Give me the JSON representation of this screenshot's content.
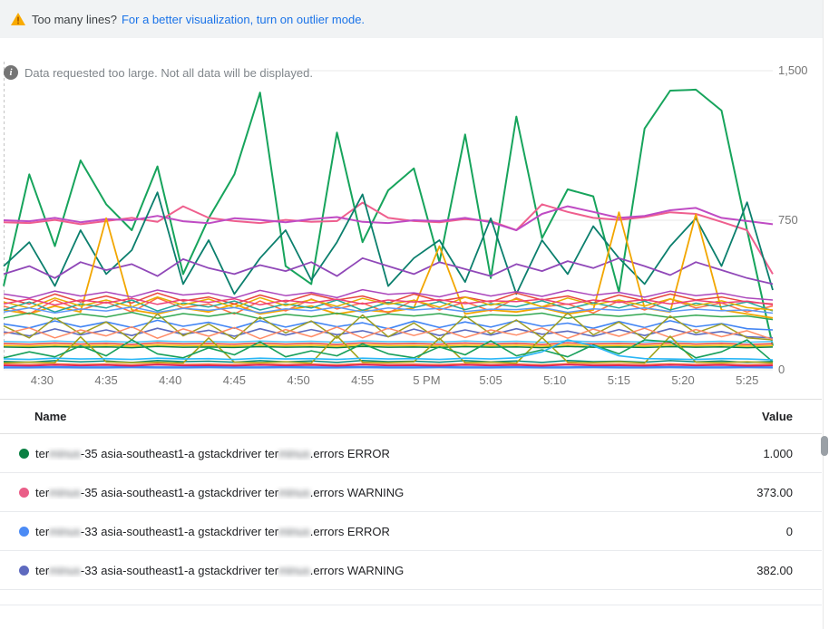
{
  "banner": {
    "question": "Too many lines?",
    "link_label": "For a better visualization, turn on outlier mode."
  },
  "info": {
    "message": "Data requested too large. Not all data will be displayed."
  },
  "colors": {
    "banner_bg": "#f1f3f4",
    "warning_icon": "#f9ab00",
    "link": "#1a73e8",
    "axis_text": "#757575",
    "gridline": "#e9e9e9"
  },
  "chart_data": {
    "type": "line",
    "title": "",
    "xlabel": "",
    "ylabel": "",
    "ylim": [
      0,
      1500
    ],
    "grid": "horizontal-only",
    "legend_position": "table-below",
    "x_domain_minutes": 60,
    "x_start_time": "4:27 PM",
    "y_ticks": [
      {
        "label": "1,500",
        "value": 1500
      },
      {
        "label": "750",
        "value": 750
      },
      {
        "label": "0",
        "value": 0
      }
    ],
    "x_ticks": [
      {
        "label": "4:30",
        "minute": 3
      },
      {
        "label": "4:35",
        "minute": 8
      },
      {
        "label": "4:40",
        "minute": 13
      },
      {
        "label": "4:45",
        "minute": 18
      },
      {
        "label": "4:50",
        "minute": 23
      },
      {
        "label": "4:55",
        "minute": 28
      },
      {
        "label": "5 PM",
        "minute": 33
      },
      {
        "label": "5:05",
        "minute": 38
      },
      {
        "label": "5:10",
        "minute": 43
      },
      {
        "label": "5:15",
        "minute": 48
      },
      {
        "label": "5:20",
        "minute": 53
      },
      {
        "label": "5:25",
        "minute": 58
      }
    ],
    "series": [
      {
        "name": "terminus-35 asia-southeast1-a gstackdriver terminus.errors ERROR",
        "color": "#17a45c",
        "width": 2,
        "values": [
          420,
          980,
          620,
          1050,
          830,
          700,
          1020,
          480,
          760,
          980,
          1390,
          520,
          430,
          1190,
          640,
          900,
          1010,
          540,
          1180,
          460,
          1270,
          660,
          905,
          870,
          390,
          1210,
          1400,
          1405,
          1300,
          700,
          120
        ]
      },
      {
        "name": "terminus-35 asia-southeast1-a gstackdriver terminus.errors WARNING",
        "color": "#ef5f8e",
        "width": 2,
        "values": [
          740,
          736,
          752,
          730,
          746,
          762,
          742,
          820,
          762,
          746,
          736,
          752,
          742,
          746,
          838,
          762,
          746,
          740,
          756,
          746,
          700,
          830,
          792,
          762,
          752,
          766,
          790,
          782,
          742,
          700,
          480
        ]
      },
      {
        "name": "terminus-33 asia-southeast1-a gstackdriver terminus.errors ERROR",
        "color": "#4285f4",
        "width": 1.6,
        "values": [
          230,
          210,
          245,
          215,
          240,
          212,
          248,
          218,
          238,
          208,
          246,
          214,
          242,
          216,
          236,
          206,
          244,
          212,
          240,
          214,
          246,
          218,
          234,
          208,
          242,
          212,
          246,
          216,
          232,
          206,
          200
        ]
      },
      {
        "name": "terminus-33 asia-southeast1-a gstackdriver terminus.errors WARNING",
        "color": "#5c6bc0",
        "width": 1.6,
        "values": [
          190,
          170,
          205,
          175,
          200,
          172,
          208,
          178,
          198,
          168,
          206,
          174,
          202,
          176,
          196,
          166,
          204,
          172,
          200,
          174,
          206,
          178,
          194,
          168,
          202,
          172,
          206,
          176,
          192,
          166,
          160
        ]
      },
      {
        "color": "#bf4bc4",
        "width": 2,
        "values": [
          750,
          745,
          762,
          740,
          756,
          750,
          772,
          745,
          735,
          760,
          752,
          740,
          756,
          766,
          742,
          736,
          750,
          746,
          762,
          740,
          700,
          782,
          820,
          792,
          762,
          772,
          800,
          812,
          762,
          746,
          730
        ]
      },
      {
        "color": "#0b7f6d",
        "width": 1.8,
        "values": [
          520,
          640,
          420,
          700,
          480,
          600,
          890,
          430,
          650,
          380,
          560,
          700,
          450,
          640,
          880,
          420,
          560,
          650,
          440,
          760,
          380,
          650,
          480,
          720,
          560,
          430,
          620,
          760,
          520,
          840,
          400
        ]
      },
      {
        "color": "#9048b8",
        "width": 1.8,
        "values": [
          480,
          520,
          460,
          540,
          500,
          530,
          470,
          555,
          510,
          480,
          525,
          495,
          540,
          470,
          560,
          520,
          480,
          540,
          505,
          470,
          530,
          495,
          545,
          510,
          560,
          520,
          475,
          540,
          500,
          460,
          430
        ]
      },
      {
        "color": "#f2a600",
        "width": 1.8,
        "values": [
          300,
          280,
          320,
          290,
          760,
          300,
          280,
          310,
          290,
          330,
          280,
          300,
          320,
          280,
          300,
          290,
          310,
          620,
          280,
          300,
          290,
          310,
          280,
          300,
          790,
          310,
          290,
          780,
          300,
          280,
          260
        ]
      },
      {
        "color": "#ff7043",
        "width": 1.5,
        "values": [
          320,
          280,
          350,
          300,
          340,
          290,
          360,
          310,
          330,
          280,
          345,
          295,
          355,
          305,
          335,
          285,
          350,
          300,
          340,
          295,
          360,
          315,
          330,
          285,
          345,
          300,
          355,
          310,
          335,
          290,
          320
        ]
      },
      {
        "color": "#e8453c",
        "width": 1.5,
        "values": [
          360,
          330,
          380,
          340,
          370,
          335,
          385,
          345,
          365,
          330,
          375,
          340,
          380,
          350,
          370,
          335,
          380,
          345,
          365,
          340,
          385,
          350,
          370,
          335,
          375,
          345,
          380,
          350,
          365,
          340,
          330
        ]
      },
      {
        "color": "#26a69a",
        "width": 1.5,
        "values": [
          300,
          340,
          290,
          330,
          310,
          350,
          295,
          335,
          315,
          345,
          300,
          330,
          310,
          350,
          298,
          338,
          312,
          342,
          302,
          332,
          316,
          346,
          306,
          336,
          310,
          344,
          300,
          334,
          315,
          340,
          295
        ]
      },
      {
        "color": "#ab47bc",
        "width": 1.5,
        "values": [
          380,
          360,
          395,
          370,
          390,
          365,
          400,
          375,
          385,
          360,
          398,
          372,
          388,
          362,
          402,
          378,
          386,
          366,
          396,
          370,
          392,
          368,
          398,
          374,
          388,
          364,
          394,
          372,
          384,
          360,
          350
        ]
      },
      {
        "color": "#e6b000",
        "width": 1.5,
        "values": [
          340,
          310,
          360,
          320,
          350,
          315,
          365,
          325,
          355,
          312,
          362,
          322,
          352,
          318,
          358,
          328,
          348,
          314,
          364,
          324,
          354,
          316,
          360,
          326,
          350,
          320,
          356,
          322,
          346,
          312,
          300
        ]
      },
      {
        "color": "#ec407a",
        "width": 1.5,
        "values": [
          330,
          355,
          325,
          350,
          335,
          358,
          328,
          352,
          338,
          356,
          326,
          348,
          336,
          354,
          330,
          350,
          340,
          352,
          332,
          346,
          342,
          354,
          328,
          350,
          338,
          352,
          330,
          348,
          336,
          344,
          326
        ]
      },
      {
        "color": "#5e97f6",
        "width": 1.5,
        "values": [
          290,
          310,
          285,
          305,
          295,
          315,
          288,
          308,
          298,
          312,
          286,
          306,
          296,
          314,
          290,
          310,
          300,
          308,
          292,
          304,
          302,
          312,
          288,
          306,
          298,
          310,
          292,
          304,
          296,
          300,
          284
        ]
      },
      {
        "color": "#33a852",
        "width": 1.5,
        "values": [
          260,
          285,
          255,
          280,
          265,
          288,
          258,
          282,
          268,
          286,
          256,
          278,
          266,
          284,
          260,
          280,
          270,
          282,
          262,
          276,
          272,
          284,
          258,
          278,
          268,
          280,
          262,
          274,
          266,
          270,
          252
        ]
      },
      {
        "color": "#9e9d24",
        "width": 1.5,
        "values": [
          220,
          160,
          260,
          180,
          240,
          150,
          280,
          170,
          230,
          155,
          265,
          185,
          245,
          158,
          275,
          165,
          235,
          150,
          270,
          180,
          250,
          160,
          285,
          175,
          240,
          155,
          270,
          185,
          230,
          160,
          150
        ]
      },
      {
        "color": "#ff8a65",
        "width": 1.5,
        "values": [
          180,
          210,
          160,
          200,
          170,
          215,
          158,
          205,
          168,
          212,
          156,
          202,
          166,
          214,
          160,
          208,
          172,
          206,
          162,
          200,
          174,
          210,
          158,
          204,
          168,
          208,
          162,
          202,
          166,
          196,
          152
        ]
      },
      {
        "color": "#e8453c",
        "width": 1.5,
        "values": [
          132,
          128,
          134,
          129,
          133,
          127,
          135,
          130,
          132,
          128,
          134,
          129,
          133,
          127,
          135,
          130,
          132,
          128,
          134,
          129,
          133,
          127,
          135,
          130,
          132,
          128,
          134,
          129,
          133,
          127,
          131
        ]
      },
      {
        "color": "#fbbc04",
        "width": 1.5,
        "values": [
          122,
          119,
          124,
          120,
          123,
          118,
          125,
          121,
          122,
          119,
          124,
          120,
          123,
          118,
          125,
          121,
          122,
          119,
          124,
          120,
          123,
          118,
          125,
          121,
          122,
          119,
          124,
          120,
          123,
          118,
          122
        ]
      },
      {
        "color": "#4fc3f7",
        "width": 1.5,
        "values": [
          142,
          139,
          144,
          140,
          143,
          138,
          145,
          141,
          142,
          139,
          144,
          140,
          143,
          138,
          145,
          141,
          142,
          139,
          144,
          140,
          143,
          138,
          145,
          141,
          142,
          139,
          144,
          140,
          143,
          138,
          142
        ]
      },
      {
        "color": "#0b8043",
        "width": 1.5,
        "values": [
          114,
          112,
          116,
          113,
          115,
          111,
          117,
          113,
          114,
          112,
          116,
          113,
          115,
          111,
          117,
          113,
          114,
          112,
          116,
          113,
          115,
          111,
          117,
          113,
          114,
          112,
          116,
          113,
          115,
          111,
          114
        ]
      },
      {
        "color": "#4285f4",
        "width": 2.5,
        "values": [
          12,
          12,
          13,
          12,
          12,
          13,
          12,
          12,
          13,
          12,
          12,
          13,
          12,
          12,
          13,
          12,
          12,
          13,
          12,
          12,
          13,
          12,
          12,
          13,
          12,
          12,
          13,
          12,
          12,
          13,
          12
        ]
      },
      {
        "color": "#ff7043",
        "width": 1.5,
        "values": [
          28,
          26,
          30,
          27,
          29,
          25,
          31,
          27,
          28,
          26,
          30,
          27,
          29,
          25,
          31,
          27,
          28,
          26,
          30,
          27,
          29,
          25,
          31,
          27,
          28,
          26,
          30,
          27,
          29,
          25,
          28
        ]
      },
      {
        "color": "#00897b",
        "width": 1.5,
        "values": [
          42,
          38,
          46,
          40,
          44,
          37,
          47,
          41,
          43,
          38,
          46,
          40,
          44,
          37,
          47,
          41,
          43,
          38,
          46,
          40,
          44,
          37,
          47,
          41,
          43,
          38,
          46,
          40,
          44,
          37,
          42
        ]
      },
      {
        "color": "#d81b60",
        "width": 1.5,
        "values": [
          22,
          20,
          24,
          21,
          23,
          19,
          25,
          21,
          22,
          20,
          24,
          21,
          23,
          19,
          25,
          21,
          22,
          20,
          24,
          21,
          23,
          19,
          25,
          21,
          22,
          20,
          24,
          21,
          23,
          19,
          22
        ]
      },
      {
        "color": "#a2a31a",
        "width": 1.6,
        "values": [
          35,
          38,
          36,
          165,
          40,
          36,
          38,
          34,
          160,
          38,
          36,
          40,
          34,
          170,
          38,
          36,
          40,
          158,
          36,
          38,
          34,
          162,
          38,
          36,
          40,
          34,
          168,
          38,
          36,
          40,
          35
        ]
      },
      {
        "color": "#18a05b",
        "width": 1.6,
        "values": [
          60,
          90,
          65,
          120,
          70,
          150,
          80,
          60,
          110,
          75,
          140,
          65,
          95,
          70,
          130,
          80,
          60,
          115,
          75,
          145,
          70,
          100,
          65,
          125,
          80,
          150,
          140,
          60,
          90,
          150,
          40
        ]
      },
      {
        "color": "#29b6f6",
        "width": 1.6,
        "values": [
          55,
          52,
          58,
          54,
          56,
          52,
          58,
          54,
          56,
          52,
          58,
          54,
          56,
          52,
          58,
          54,
          56,
          52,
          58,
          54,
          60,
          90,
          150,
          120,
          70,
          56,
          54,
          52,
          56,
          54,
          50
        ]
      }
    ]
  },
  "legend": {
    "headers": {
      "name": "Name",
      "value": "Value"
    },
    "rows": [
      {
        "dot_color": "#0b8043",
        "name_prefix": "ter",
        "blur1": "minus",
        "name_mid": "-35 asia-southeast1-a gstackdriver ter",
        "blur2": "minus",
        "name_suffix": ".errors ERROR",
        "value": "1.000"
      },
      {
        "dot_color": "#ea5e88",
        "name_prefix": "ter",
        "blur1": "minus",
        "name_mid": "-35 asia-southeast1-a gstackdriver ter",
        "blur2": "minus",
        "name_suffix": ".errors WARNING",
        "value": "373.00"
      },
      {
        "dot_color": "#4c8bf5",
        "name_prefix": "ter",
        "blur1": "minus",
        "name_mid": "-33 asia-southeast1-a gstackdriver ter",
        "blur2": "minus",
        "name_suffix": ".errors ERROR",
        "value": "0"
      },
      {
        "dot_color": "#5e6abf",
        "name_prefix": "ter",
        "blur1": "minus",
        "name_mid": "-33 asia-southeast1-a gstackdriver ter",
        "blur2": "minus",
        "name_suffix": ".errors WARNING",
        "value": "382.00"
      }
    ]
  }
}
